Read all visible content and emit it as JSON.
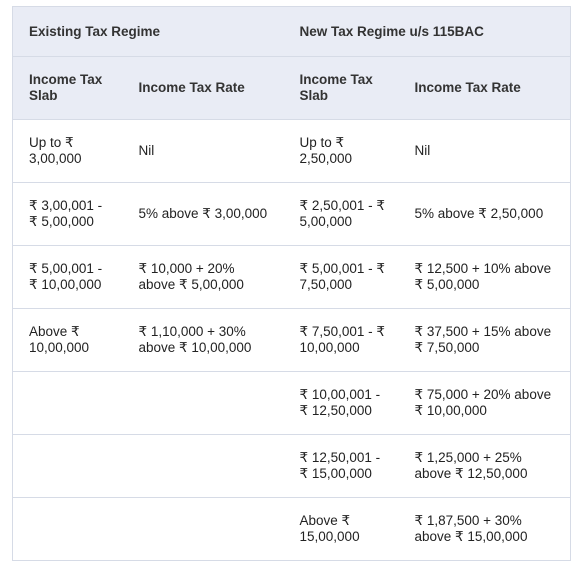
{
  "table": {
    "regimes": {
      "existing": "Existing Tax Regime",
      "new": "New Tax Regime u/s 115BAC"
    },
    "column_headers": [
      "Income Tax Slab",
      "Income Tax Rate",
      "Income Tax Slab",
      "Income Tax Rate"
    ],
    "rows": [
      [
        "Up to ₹ 3,00,000",
        "Nil",
        "Up to ₹ 2,50,000",
        "Nil"
      ],
      [
        "₹ 3,00,001 - ₹ 5,00,000",
        "5% above ₹ 3,00,000",
        "₹ 2,50,001 - ₹ 5,00,000",
        "5% above ₹ 2,50,000"
      ],
      [
        "₹ 5,00,001 - ₹ 10,00,000",
        "₹ 10,000 + 20% above ₹ 5,00,000",
        "₹ 5,00,001 - ₹ 7,50,000",
        "₹ 12,500 + 10% above ₹ 5,00,000"
      ],
      [
        "Above ₹ 10,00,000",
        "₹ 1,10,000 + 30% above ₹ 10,00,000",
        "₹ 7,50,001 - ₹ 10,00,000",
        "₹ 37,500 + 15% above ₹ 7,50,000"
      ],
      [
        "",
        "",
        "₹ 10,00,001 - ₹ 12,50,000",
        "₹ 75,000 + 20% above ₹ 10,00,000"
      ],
      [
        "",
        "",
        "₹ 12,50,001 - ₹ 15,00,000",
        "₹ 1,25,000 + 25% above ₹ 12,50,000"
      ],
      [
        "",
        "",
        "Above ₹ 15,00,000",
        "₹ 1,87,500 + 30% above ₹ 15,00,000"
      ]
    ]
  }
}
